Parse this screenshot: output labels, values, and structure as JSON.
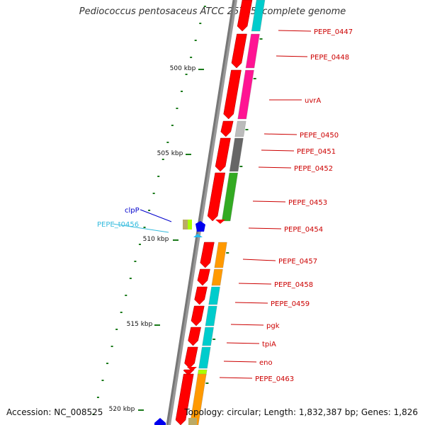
{
  "title": "Pediococcus pentosaceus ATCC 25745, complete genome",
  "accession": "Accession: NC_008525",
  "topology": "Topology: circular; Length: 1,832,387 bp; Genes: 1,826",
  "scale_labels": [
    "500 kbp",
    "505 kbp",
    "510 kbp",
    "515 kbp",
    "520 kbp"
  ],
  "gene_labels": [
    {
      "name": "PEPE_0447",
      "color": "#cc0000"
    },
    {
      "name": "PEPE_0448",
      "color": "#cc0000"
    },
    {
      "name": "uvrA",
      "color": "#cc0000"
    },
    {
      "name": "PEPE_0450",
      "color": "#cc0000"
    },
    {
      "name": "PEPE_0451",
      "color": "#cc0000"
    },
    {
      "name": "PEPE_0452",
      "color": "#cc0000"
    },
    {
      "name": "PEPE_0453",
      "color": "#cc0000"
    },
    {
      "name": "PEPE_0454",
      "color": "#cc0000"
    },
    {
      "name": "PEPE_0457",
      "color": "#cc0000"
    },
    {
      "name": "PEPE_0458",
      "color": "#cc0000"
    },
    {
      "name": "PEPE_0459",
      "color": "#cc0000"
    },
    {
      "name": "pgk",
      "color": "#cc0000"
    },
    {
      "name": "tpiA",
      "color": "#cc0000"
    },
    {
      "name": "eno",
      "color": "#cc0000"
    },
    {
      "name": "PEPE_0463",
      "color": "#cc0000"
    },
    {
      "name": "clpP",
      "color": "#0000cc"
    },
    {
      "name": "PEPE_t0456",
      "color": "#33bbdd"
    }
  ],
  "colors": {
    "backbone": "#777777",
    "cds": "#ff0000",
    "tick": "#1a7a1a",
    "cog_cyan": "#00cccc",
    "cog_pink": "#ff1493",
    "cog_orange": "#ff9900",
    "cog_gray": "#bbbbbb",
    "cog_darkgray": "#666666",
    "cog_green": "#33aa22",
    "cog_lime": "#aaff00",
    "trna": "#22bbee",
    "reverse_strand": "#0000ee",
    "olive": "#bbaa66"
  }
}
